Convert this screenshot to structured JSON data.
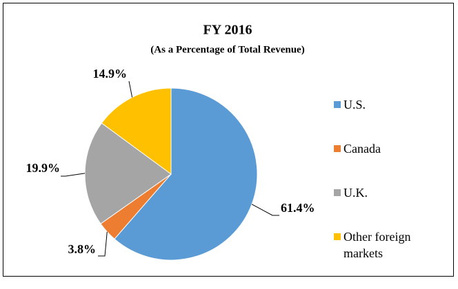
{
  "chart_data": {
    "type": "pie",
    "title": "FY 2016",
    "subtitle": "(As a Percentage of Total Revenue)",
    "categories": [
      "U.S.",
      "Canada",
      "U.K.",
      "Other foreign markets"
    ],
    "values": [
      61.4,
      3.8,
      19.9,
      14.9
    ],
    "value_labels": [
      "61.4%",
      "3.8%",
      "19.9%",
      "14.9%"
    ],
    "colors": [
      "#5b9bd5",
      "#ed7d31",
      "#a5a5a5",
      "#ffc000"
    ],
    "legend": "right"
  }
}
